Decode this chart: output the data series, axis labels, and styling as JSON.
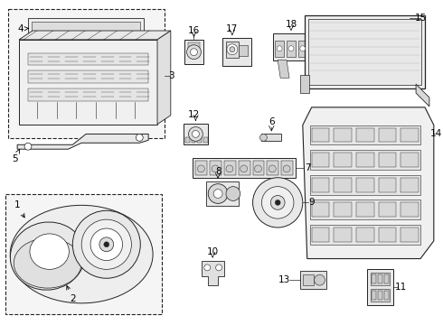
{
  "bg_color": "#ffffff",
  "fig_width": 4.9,
  "fig_height": 3.6,
  "dpi": 100,
  "lc": "#222222",
  "lw": 0.7,
  "label_fs": 7.5
}
